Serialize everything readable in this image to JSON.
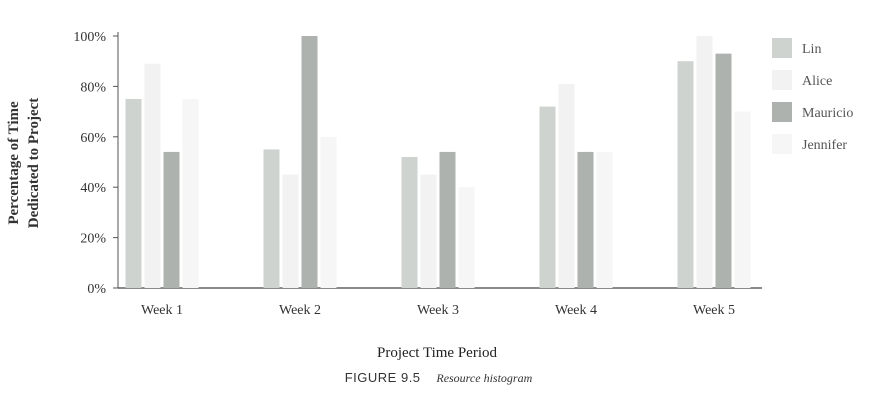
{
  "chart_data": {
    "type": "bar",
    "categories": [
      "Week 1",
      "Week 2",
      "Week 3",
      "Week 4",
      "Week 5"
    ],
    "series": [
      {
        "name": "Lin",
        "values": [
          75,
          55,
          52,
          72,
          90
        ],
        "color": "#cfd3d0"
      },
      {
        "name": "Alice",
        "values": [
          89,
          45,
          45,
          81,
          100
        ],
        "color": "#f1f2f1"
      },
      {
        "name": "Mauricio",
        "values": [
          54,
          100,
          54,
          54,
          93
        ],
        "color": "#adb2af"
      },
      {
        "name": "Jennifer",
        "values": [
          75,
          60,
          40,
          54,
          70
        ],
        "color": "#f6f6f6"
      }
    ],
    "xlabel": "Project Time Period",
    "ylabel_line1": "Percentage of Time",
    "ylabel_line2": "Dedicated to Project",
    "ylim": [
      0,
      100
    ],
    "yticks": [
      0,
      20,
      40,
      60,
      80,
      100
    ],
    "ytick_suffix": "%",
    "legend_position": "right",
    "grid": false
  },
  "caption": {
    "figure_number": "FIGURE 9.5",
    "title": "Resource histogram"
  }
}
